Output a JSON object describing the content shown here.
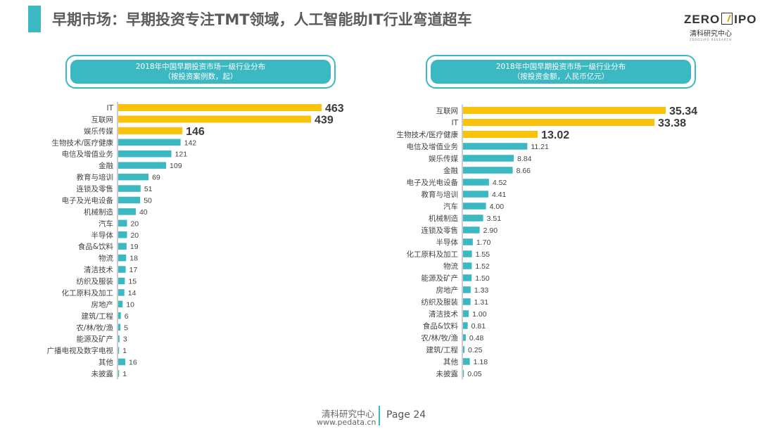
{
  "title": "早期市场：早期投资专注TMT领域，人工智能助IT行业弯道超车",
  "logo": {
    "main_left": "ZERO",
    "main_right": "IPO",
    "sub": "清科研究中心",
    "tiny": "ZERO2IPO RESEARCH"
  },
  "footer": {
    "org": "清科研究中心",
    "url": "www.pedata.cn",
    "page": "Page 24"
  },
  "colors": {
    "accent": "#3cb8c3",
    "highlight": "#f9c20b"
  },
  "chart_data": [
    {
      "type": "bar",
      "orientation": "horizontal",
      "title": "2018年中国早期投资市场一级行业分布",
      "subtitle": "（按投资案例数，起）",
      "categories": [
        "IT",
        "互联网",
        "娱乐传媒",
        "生物技术/医疗健康",
        "电信及增值业务",
        "金融",
        "教育与培训",
        "连锁及零售",
        "电子及光电设备",
        "机械制造",
        "汽车",
        "半导体",
        "食品&饮料",
        "物流",
        "清洁技术",
        "纺织及服装",
        "化工原料及加工",
        "房地产",
        "建筑/工程",
        "农/林/牧/渔",
        "能源及矿产",
        "广播电视及数字电视",
        "其他",
        "未披露"
      ],
      "values": [
        463,
        439,
        146,
        142,
        121,
        109,
        69,
        51,
        50,
        40,
        20,
        20,
        19,
        18,
        17,
        15,
        14,
        10,
        6,
        5,
        3,
        1,
        16,
        1
      ],
      "value_labels": [
        "463",
        "439",
        "146",
        "142",
        "121",
        "109",
        "69",
        "51",
        "50",
        "40",
        "20",
        "20",
        "19",
        "18",
        "17",
        "15",
        "14",
        "10",
        "6",
        "5",
        "3",
        "1",
        "16",
        "1"
      ],
      "highlighted_count": 3,
      "xlim": [
        0,
        463
      ]
    },
    {
      "type": "bar",
      "orientation": "horizontal",
      "title": "2018年中国早期投资市场一级行业分布",
      "subtitle": "（按投资金额，人民币亿元）",
      "categories": [
        "互联网",
        "IT",
        "生物技术/医疗健康",
        "电信及增值业务",
        "娱乐传媒",
        "金融",
        "电子及光电设备",
        "教育与培训",
        "汽车",
        "机械制造",
        "连锁及零售",
        "半导体",
        "化工原料及加工",
        "物流",
        "能源及矿产",
        "房地产",
        "纺织及服装",
        "清洁技术",
        "食品&饮料",
        "农/林/牧/渔",
        "建筑/工程",
        "其他",
        "未披露"
      ],
      "values": [
        35.34,
        33.38,
        13.02,
        11.21,
        8.84,
        8.66,
        4.52,
        4.41,
        4.0,
        3.51,
        2.9,
        1.7,
        1.55,
        1.52,
        1.5,
        1.33,
        1.31,
        1.0,
        0.81,
        0.48,
        0.25,
        1.18,
        0.05
      ],
      "value_labels": [
        "35.34",
        "33.38",
        "13.02",
        "11.21",
        "8.84",
        "8.66",
        "4.52",
        "4.41",
        "4.00",
        "3.51",
        "2.90",
        "1.70",
        "1.55",
        "1.52",
        "1.50",
        "1.33",
        "1.31",
        "1.00",
        "0.81",
        "0.48",
        "0.25",
        "1.18",
        "0.05"
      ],
      "highlighted_count": 3,
      "xlim": [
        0,
        35.34
      ]
    }
  ]
}
